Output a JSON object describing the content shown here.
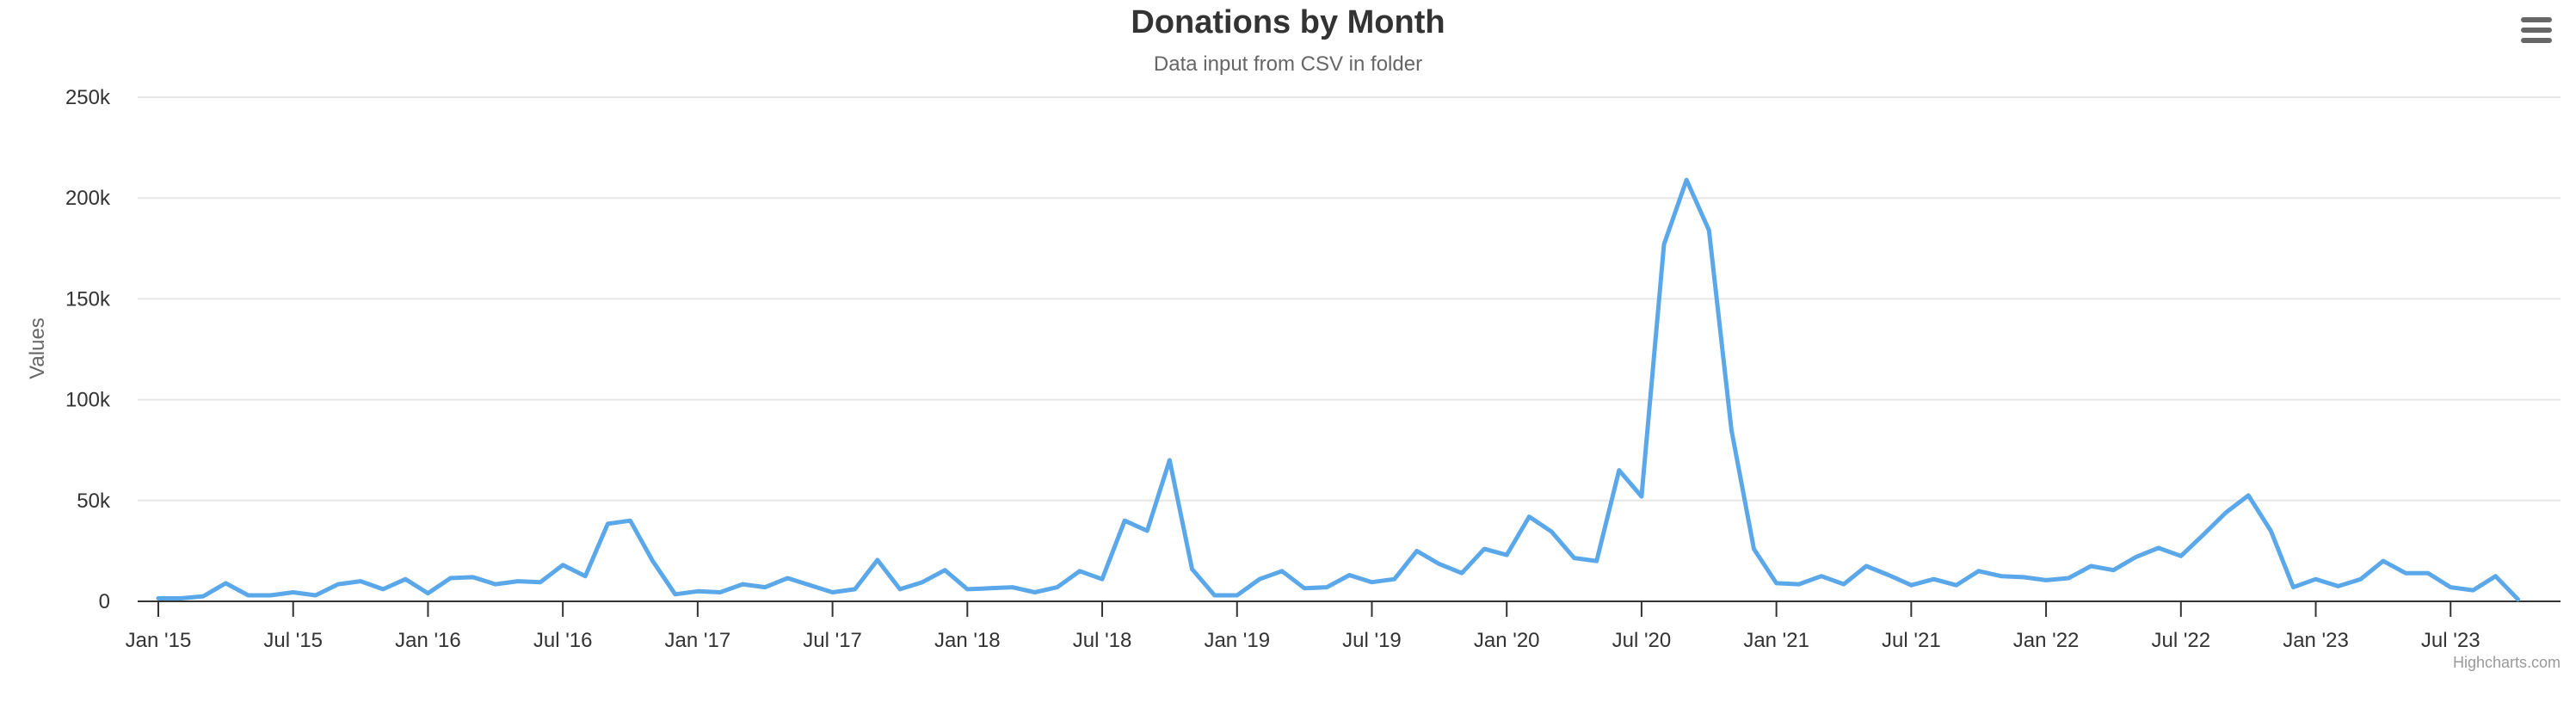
{
  "chart_data": {
    "type": "line",
    "title": "Donations by Month",
    "subtitle": "Data input from CSV in folder",
    "ylabel": "Values",
    "xlabel": "",
    "ylim": [
      0,
      250000
    ],
    "y_ticks": [
      {
        "value": 0,
        "label": "0"
      },
      {
        "value": 50000,
        "label": "50k"
      },
      {
        "value": 100000,
        "label": "100k"
      },
      {
        "value": 150000,
        "label": "150k"
      },
      {
        "value": 200000,
        "label": "200k"
      },
      {
        "value": 250000,
        "label": "250k"
      }
    ],
    "x_ticks": [
      "Jan '15",
      "Jul '15",
      "Jan '16",
      "Jul '16",
      "Jan '17",
      "Jul '17",
      "Jan '18",
      "Jul '18",
      "Jan '19",
      "Jul '19",
      "Jan '20",
      "Jul '20",
      "Jan '21",
      "Jul '21",
      "Jan '22",
      "Jul '22",
      "Jan '23",
      "Jul '23"
    ],
    "x_start": "Jan 2015",
    "grid": true,
    "legend": "none",
    "credits": "Highcharts.com",
    "series": [
      {
        "color": "#5aa7ea",
        "values": [
          1500,
          1500,
          2500,
          9000,
          3000,
          3000,
          4500,
          3000,
          8500,
          10000,
          6000,
          11000,
          4000,
          11500,
          12000,
          8500,
          10000,
          9500,
          18000,
          12500,
          38500,
          40000,
          20000,
          3500,
          5000,
          4500,
          8500,
          7000,
          11500,
          8000,
          4500,
          6000,
          20500,
          6000,
          9500,
          15500,
          6000,
          6500,
          7000,
          4500,
          7000,
          15000,
          11000,
          40000,
          35000,
          70000,
          16000,
          3000,
          3000,
          11000,
          15000,
          6500,
          7000,
          13000,
          9500,
          11000,
          25000,
          18500,
          14000,
          26000,
          23000,
          42000,
          34500,
          21500,
          20000,
          65000,
          52000,
          177000,
          209000,
          184000,
          85000,
          26000,
          9000,
          8500,
          12500,
          8500,
          17500,
          13000,
          8000,
          11000,
          8000,
          15000,
          12500,
          12000,
          10500,
          11500,
          17500,
          15500,
          22000,
          26500,
          22500,
          33000,
          44000,
          52500,
          35000,
          7000,
          11000,
          7500,
          11000,
          20000,
          14000,
          14000,
          7000,
          5500,
          12500,
          1000
        ]
      }
    ]
  }
}
